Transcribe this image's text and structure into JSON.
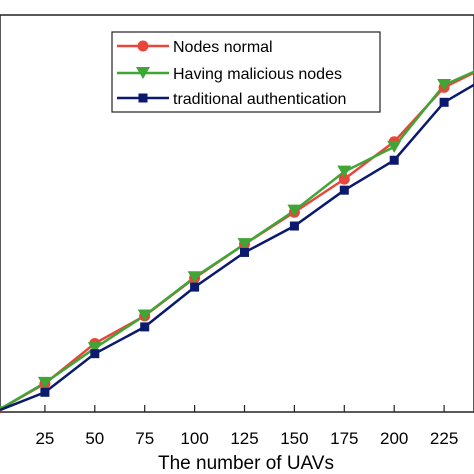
{
  "chart_data": {
    "type": "line",
    "x": [
      0,
      25,
      50,
      75,
      100,
      125,
      150,
      175,
      200,
      225,
      250
    ],
    "xticks": [
      25,
      50,
      75,
      100,
      125,
      150,
      175,
      200,
      225
    ],
    "xlabel": "The number of UAVs",
    "ylabel": "",
    "title": "",
    "xlim": [
      0,
      250
    ],
    "ylim": [
      0,
      100
    ],
    "grid": false,
    "legend_position": "top-center",
    "series": [
      {
        "name": "Nodes normal",
        "color": "#e8463a",
        "marker": "circle",
        "values": [
          0,
          7.2,
          17.4,
          24.4,
          34.0,
          42.6,
          50.7,
          59.1,
          68.6,
          82.4,
          88.6
        ]
      },
      {
        "name": "Having malicious nodes",
        "color": "#3fa535",
        "marker": "triangle-down",
        "values": [
          0,
          7.4,
          16.2,
          24.5,
          34.2,
          42.6,
          51.1,
          61.0,
          67.3,
          83.0,
          88.6
        ]
      },
      {
        "name": "traditional authentication",
        "color": "#0b1a6e",
        "marker": "square",
        "values": [
          0,
          5.0,
          14.8,
          21.6,
          31.7,
          40.5,
          47.2,
          56.3,
          63.9,
          78.6,
          86.0
        ]
      }
    ]
  }
}
